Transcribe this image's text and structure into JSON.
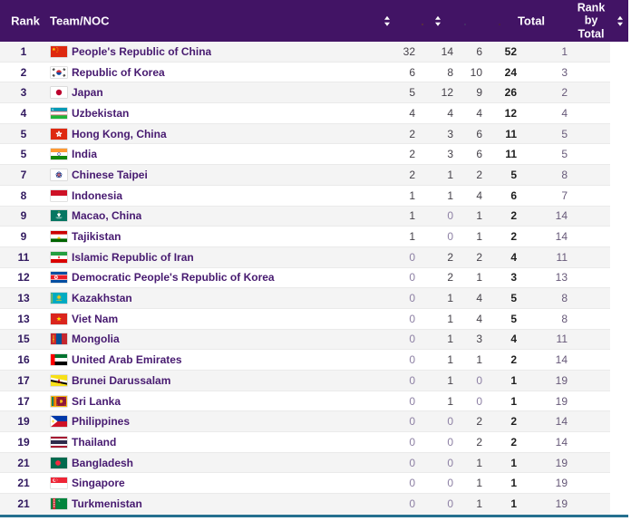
{
  "header": {
    "rank": "Rank",
    "team": "Team/NOC",
    "total": "Total",
    "rank_by_total": "Rank by Total",
    "medal_columns": [
      "gold-medal-icon",
      "silver-medal-icon",
      "bronze-medal-icon"
    ],
    "sort_icons": [
      "team-sort-icon",
      "gold-sort-icon",
      "rank-by-total-sort-icon"
    ]
  },
  "colors": {
    "header_bg": "#421465",
    "header_text": "#ffffff",
    "row_alt_bg": "#f4f4f4",
    "rank_text": "#31195f",
    "team_text": "#471a70",
    "zero_value_text": "#8d80a4",
    "rank_by_total_text": "#665878",
    "bottom_border": "#25708f",
    "gold_medal": "#ecc93e",
    "silver_medal": "#ccd9df",
    "bronze_medal": "#bf9b77"
  },
  "rows": [
    {
      "rank": "1",
      "flag": "china",
      "team": "People's Republic of China",
      "gold": "32",
      "silver": "14",
      "bronze": "6",
      "total": "52",
      "rank_by_total": "1"
    },
    {
      "rank": "2",
      "flag": "korea",
      "team": "Republic of Korea",
      "gold": "6",
      "silver": "8",
      "bronze": "10",
      "total": "24",
      "rank_by_total": "3"
    },
    {
      "rank": "3",
      "flag": "japan",
      "team": "Japan",
      "gold": "5",
      "silver": "12",
      "bronze": "9",
      "total": "26",
      "rank_by_total": "2"
    },
    {
      "rank": "4",
      "flag": "uzbekistan",
      "team": "Uzbekistan",
      "gold": "4",
      "silver": "4",
      "bronze": "4",
      "total": "12",
      "rank_by_total": "4"
    },
    {
      "rank": "5",
      "flag": "hongkong",
      "team": "Hong Kong, China",
      "gold": "2",
      "silver": "3",
      "bronze": "6",
      "total": "11",
      "rank_by_total": "5"
    },
    {
      "rank": "5",
      "flag": "india",
      "team": "India",
      "gold": "2",
      "silver": "3",
      "bronze": "6",
      "total": "11",
      "rank_by_total": "5"
    },
    {
      "rank": "7",
      "flag": "taipei",
      "team": "Chinese Taipei",
      "gold": "2",
      "silver": "1",
      "bronze": "2",
      "total": "5",
      "rank_by_total": "8"
    },
    {
      "rank": "8",
      "flag": "indonesia",
      "team": "Indonesia",
      "gold": "1",
      "silver": "1",
      "bronze": "4",
      "total": "6",
      "rank_by_total": "7"
    },
    {
      "rank": "9",
      "flag": "macao",
      "team": "Macao, China",
      "gold": "1",
      "silver": "0",
      "bronze": "1",
      "total": "2",
      "rank_by_total": "14"
    },
    {
      "rank": "9",
      "flag": "tajikistan",
      "team": "Tajikistan",
      "gold": "1",
      "silver": "0",
      "bronze": "1",
      "total": "2",
      "rank_by_total": "14"
    },
    {
      "rank": "11",
      "flag": "iran",
      "team": "Islamic Republic of Iran",
      "gold": "0",
      "silver": "2",
      "bronze": "2",
      "total": "4",
      "rank_by_total": "11"
    },
    {
      "rank": "12",
      "flag": "dprk",
      "team": "Democratic People's Republic of Korea",
      "gold": "0",
      "silver": "2",
      "bronze": "1",
      "total": "3",
      "rank_by_total": "13"
    },
    {
      "rank": "13",
      "flag": "kazakhstan",
      "team": "Kazakhstan",
      "gold": "0",
      "silver": "1",
      "bronze": "4",
      "total": "5",
      "rank_by_total": "8"
    },
    {
      "rank": "13",
      "flag": "vietnam",
      "team": "Viet Nam",
      "gold": "0",
      "silver": "1",
      "bronze": "4",
      "total": "5",
      "rank_by_total": "8"
    },
    {
      "rank": "15",
      "flag": "mongolia",
      "team": "Mongolia",
      "gold": "0",
      "silver": "1",
      "bronze": "3",
      "total": "4",
      "rank_by_total": "11"
    },
    {
      "rank": "16",
      "flag": "uae",
      "team": "United Arab Emirates",
      "gold": "0",
      "silver": "1",
      "bronze": "1",
      "total": "2",
      "rank_by_total": "14"
    },
    {
      "rank": "17",
      "flag": "brunei",
      "team": "Brunei Darussalam",
      "gold": "0",
      "silver": "1",
      "bronze": "0",
      "total": "1",
      "rank_by_total": "19"
    },
    {
      "rank": "17",
      "flag": "srilanka",
      "team": "Sri Lanka",
      "gold": "0",
      "silver": "1",
      "bronze": "0",
      "total": "1",
      "rank_by_total": "19"
    },
    {
      "rank": "19",
      "flag": "philippines",
      "team": "Philippines",
      "gold": "0",
      "silver": "0",
      "bronze": "2",
      "total": "2",
      "rank_by_total": "14"
    },
    {
      "rank": "19",
      "flag": "thailand",
      "team": "Thailand",
      "gold": "0",
      "silver": "0",
      "bronze": "2",
      "total": "2",
      "rank_by_total": "14"
    },
    {
      "rank": "21",
      "flag": "bangladesh",
      "team": "Bangladesh",
      "gold": "0",
      "silver": "0",
      "bronze": "1",
      "total": "1",
      "rank_by_total": "19"
    },
    {
      "rank": "21",
      "flag": "singapore",
      "team": "Singapore",
      "gold": "0",
      "silver": "0",
      "bronze": "1",
      "total": "1",
      "rank_by_total": "19"
    },
    {
      "rank": "21",
      "flag": "turkmenistan",
      "team": "Turkmenistan",
      "gold": "0",
      "silver": "0",
      "bronze": "1",
      "total": "1",
      "rank_by_total": "19"
    }
  ]
}
